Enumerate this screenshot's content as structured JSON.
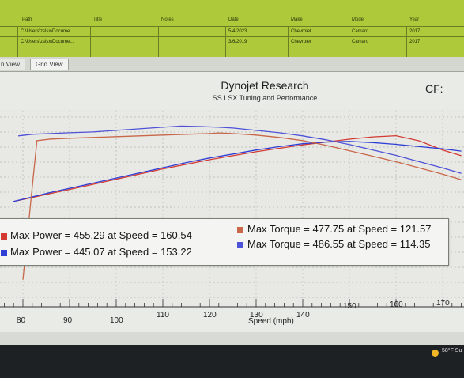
{
  "file_table": {
    "headers": [
      "Path",
      "Title",
      "Notes",
      "Date",
      "Make",
      "Model",
      "Year"
    ],
    "rows": [
      {
        "path": "C:\\Users\\zslsx\\Docume...",
        "title": "",
        "notes": "",
        "date": "5/4/2023",
        "make": "Chevrolet",
        "model": "Camaro",
        "year": "2017"
      },
      {
        "path": "C:\\Users\\zslsx\\Docume...",
        "title": "",
        "notes": "",
        "date": "3/6/2019",
        "make": "Chevrolet",
        "model": "Camaro",
        "year": "2017"
      }
    ]
  },
  "tabs": [
    "n View",
    "Grid View"
  ],
  "cf_label": "CF:",
  "legend": [
    {
      "label": "Max Power = 455.29 at Speed = 160.54",
      "color": "#d23a32"
    },
    {
      "label": "Max Power = 445.07 at Speed = 153.22",
      "color": "#2f3fd6"
    },
    {
      "label": "Max Torque = 477.75 at Speed = 121.57",
      "color": "#c8674a"
    },
    {
      "label": "Max Torque = 486.55 at Speed = 114.35",
      "color": "#4e52d8"
    }
  ],
  "taskbar": {
    "weather": "58°F Su"
  },
  "chart_data": {
    "type": "line",
    "title": "Dynojet Research",
    "subtitle": "SS LSX Tuning and Performance",
    "xlabel": "Speed (mph)",
    "ylabel": "",
    "xlim": [
      75,
      175
    ],
    "x_ticks": [
      80,
      90,
      100,
      110,
      120,
      130,
      140,
      150,
      160,
      170
    ],
    "grid": true,
    "series": [
      {
        "name": "",
        "color": "#d23a32",
        "role": "power",
        "x": [
          78,
          82,
          86,
          90,
          95,
          100,
          105,
          110,
          115,
          120,
          125,
          130,
          135,
          140,
          145,
          150,
          155,
          160,
          165,
          170,
          174
        ],
        "y": [
          340,
          347,
          354,
          361,
          370,
          379,
          388,
          397,
          405,
          413,
          420,
          427,
          433,
          439,
          444,
          449,
          453,
          455,
          446,
          430,
          420
        ]
      },
      {
        "name": "",
        "color": "#2f3fd6",
        "role": "power",
        "x": [
          78,
          82,
          86,
          90,
          95,
          100,
          105,
          110,
          115,
          120,
          125,
          130,
          135,
          140,
          145,
          150,
          155,
          160,
          165,
          170,
          174
        ],
        "y": [
          340,
          348,
          356,
          363,
          372,
          381,
          390,
          399,
          408,
          416,
          423,
          430,
          436,
          441,
          444,
          445,
          443,
          440,
          436,
          432,
          428
        ]
      },
      {
        "name": "",
        "color": "#c8674a",
        "role": "torque",
        "x": [
          80,
          83,
          86,
          90,
          95,
          100,
          105,
          110,
          115,
          120,
          122,
          125,
          130,
          135,
          140,
          145,
          150,
          155,
          160,
          165,
          170,
          174
        ],
        "y": [
          290,
          468,
          470,
          471,
          472,
          473,
          474,
          475,
          476,
          477,
          477.75,
          477,
          475,
          472,
          468,
          462,
          455,
          448,
          441,
          433,
          425,
          418
        ]
      },
      {
        "name": "",
        "color": "#4e52d8",
        "role": "torque",
        "x": [
          79,
          82,
          86,
          90,
          95,
          100,
          105,
          110,
          114,
          118,
          122,
          125,
          130,
          135,
          140,
          145,
          150,
          155,
          160,
          165,
          170,
          174
        ],
        "y": [
          474,
          476,
          477,
          478,
          479,
          481,
          483,
          485,
          486.55,
          486,
          485,
          484,
          481,
          478,
          474,
          469,
          463,
          456,
          449,
          441,
          433,
          426
        ]
      }
    ],
    "y_power_range": [
      330,
      460
    ],
    "y_torque_range": [
      400,
      490
    ],
    "peaks": {
      "red_power": {
        "value": 455.29,
        "speed": 160.54
      },
      "blue_power": {
        "value": 445.07,
        "speed": 153.22
      },
      "red_torque": {
        "value": 477.75,
        "speed": 121.57
      },
      "blue_torque": {
        "value": 486.55,
        "speed": 114.35
      }
    }
  }
}
